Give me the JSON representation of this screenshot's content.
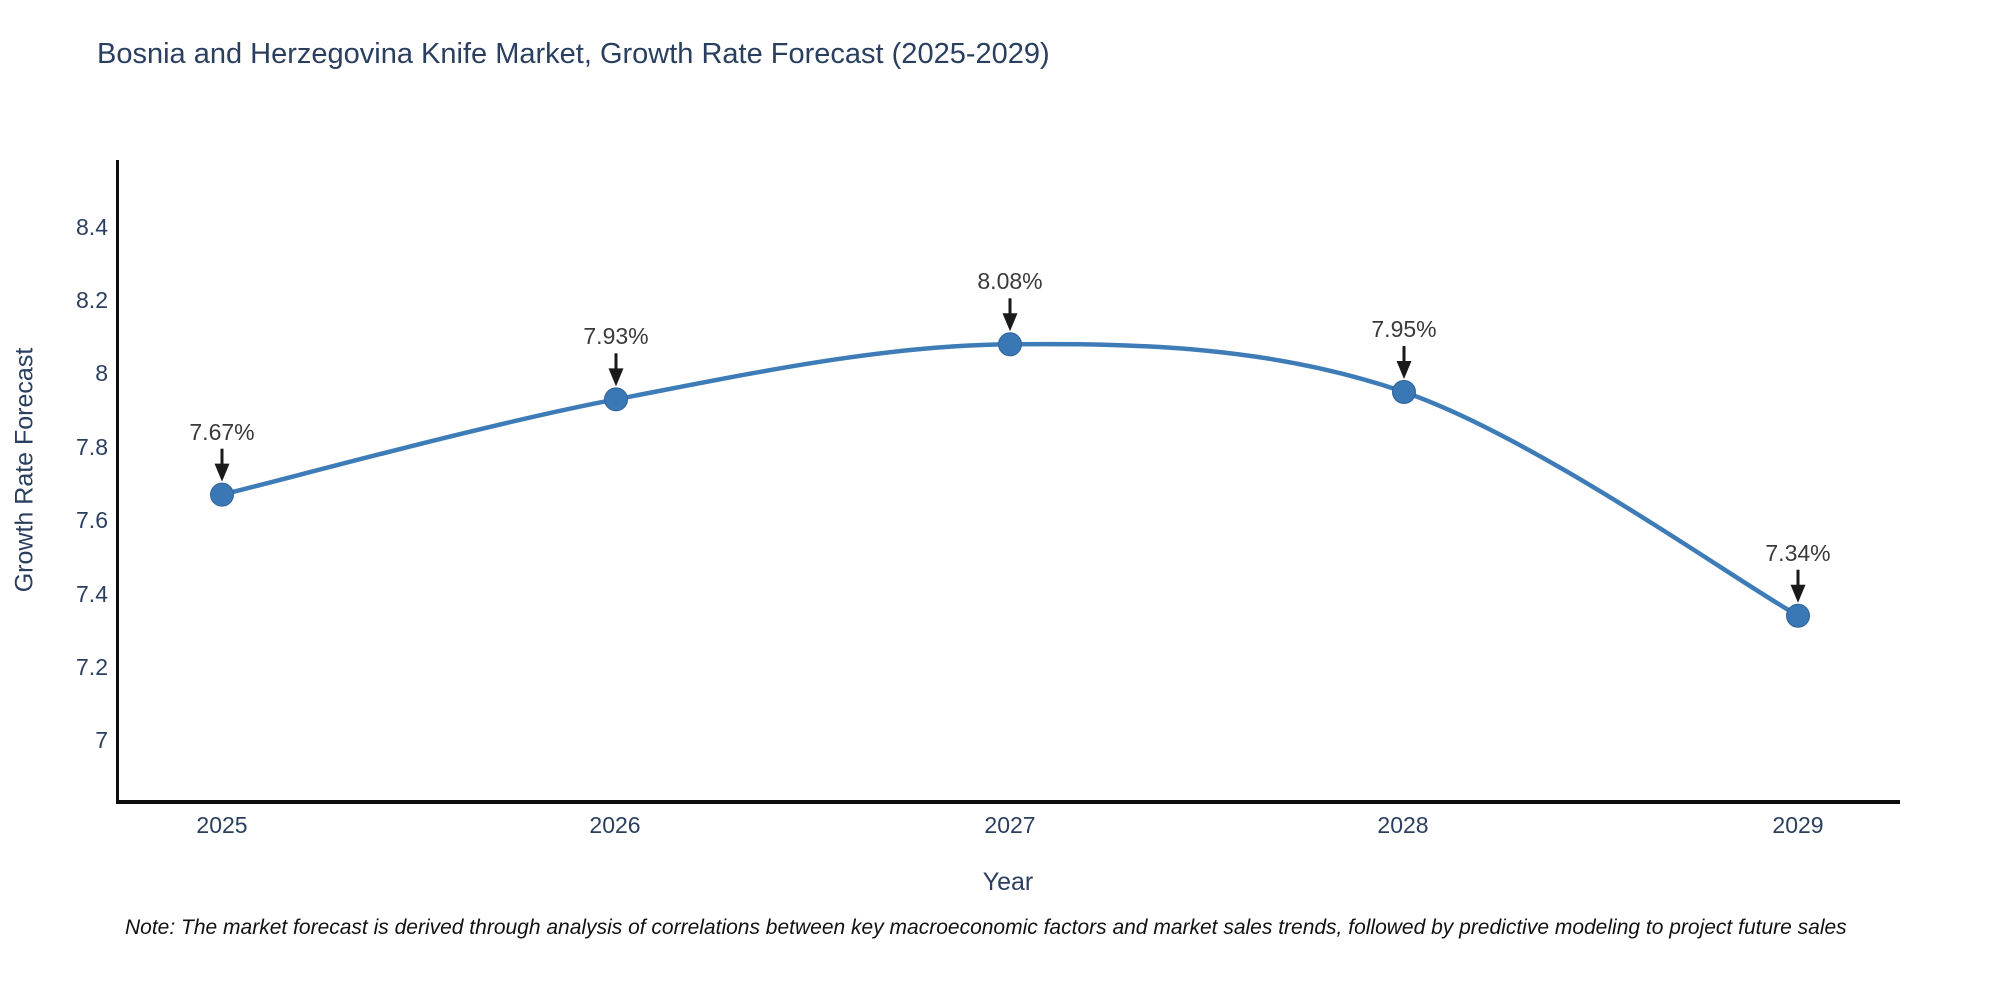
{
  "title": "Bosnia and Herzegovina Knife Market, Growth Rate Forecast (2025-2029)",
  "note": "Note: The market forecast is derived through analysis of correlations between key macroeconomic factors and market sales trends, followed by predictive modeling to project future sales",
  "chart_data": {
    "type": "line",
    "title": "Bosnia and Herzegovina Knife Market, Growth Rate Forecast (2025-2029)",
    "xlabel": "Year",
    "ylabel": "Growth Rate Forecast",
    "x": [
      2025,
      2026,
      2027,
      2028,
      2029
    ],
    "series": [
      {
        "name": "Growth Rate Forecast",
        "unit": "%",
        "values": [
          7.67,
          7.93,
          8.08,
          7.95,
          7.34
        ]
      }
    ],
    "point_labels": [
      "7.67%",
      "7.93%",
      "8.08%",
      "7.95%",
      "7.34%"
    ],
    "xticks": [
      "2025",
      "2026",
      "2027",
      "2028",
      "2029"
    ],
    "yticks": [
      "8.4",
      "8.2",
      "8",
      "7.8",
      "7.6",
      "7.4",
      "7.2",
      "7"
    ],
    "ytick_values": [
      8.4,
      8.2,
      8.0,
      7.8,
      7.6,
      7.4,
      7.2,
      7.0
    ],
    "ylim": [
      6.84,
      8.58
    ],
    "grid": false,
    "legend": false,
    "line_shape": "spline",
    "annotation_style": "value label with downward arrow to each marker",
    "colors": {
      "line": "#3e7cb8",
      "marker": "#3a77b5",
      "marker_edge": "#2e6398",
      "arrow": "#1a1a1a",
      "axis_line": "#0d0d0d",
      "axis_text": "#2a3f5f",
      "annotation_text": "#3a3a3a"
    }
  }
}
